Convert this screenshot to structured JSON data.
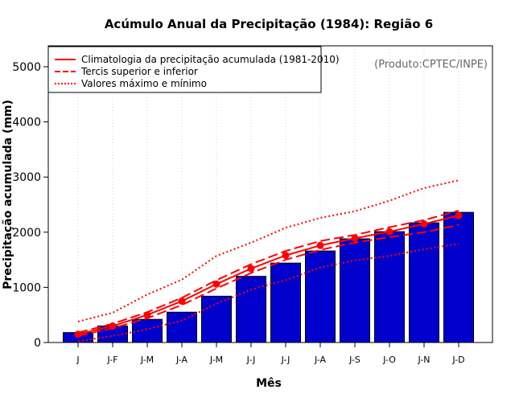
{
  "chart_data": {
    "type": "bar",
    "title": "Acúmulo Anual da Precipitação (1984): Região 6",
    "xlabel": "Mês",
    "ylabel": "Precipitação acumulada (mm)",
    "credit": "(Produto:CPTEC/INPE)",
    "ylim": [
      0,
      5300
    ],
    "yticks": [
      0,
      1000,
      2000,
      3000,
      4000,
      5000
    ],
    "grid": "vertical-dotted",
    "legend_position": "top-left",
    "categories": [
      "J",
      "J-F",
      "J-M",
      "J-A",
      "J-M",
      "J-J",
      "J-J",
      "J-A",
      "J-S",
      "J-O",
      "J-N",
      "J-D"
    ],
    "values": [
      180,
      300,
      420,
      550,
      840,
      1200,
      1440,
      1660,
      1880,
      2010,
      2170,
      2360
    ],
    "bar_color": "#0000CC",
    "line_color": "#FF0000",
    "series": [
      {
        "name": "Climatologia da precipitação acumulada (1981-2010)",
        "style": "solid",
        "markers": true,
        "values": [
          150,
          300,
          500,
          750,
          1060,
          1340,
          1580,
          1760,
          1890,
          2010,
          2150,
          2300
        ]
      },
      {
        "name": "Tercis superior e inferior",
        "style": "dashed",
        "values": [
          180,
          340,
          550,
          810,
          1130,
          1420,
          1660,
          1840,
          1950,
          2090,
          2220,
          2390
        ]
      },
      {
        "name": "Tercis superior e inferior (inferior)",
        "style": "dashed",
        "legend": false,
        "values": [
          120,
          260,
          440,
          680,
          980,
          1260,
          1500,
          1680,
          1810,
          1910,
          2000,
          2130
        ]
      },
      {
        "name": "Valores máximo e mínimo",
        "style": "dotted",
        "values": [
          380,
          540,
          870,
          1140,
          1570,
          1810,
          2080,
          2260,
          2380,
          2570,
          2800,
          2940
        ]
      },
      {
        "name": "Valores máximo e mínimo (mínimo)",
        "style": "dotted",
        "legend": false,
        "values": [
          20,
          120,
          240,
          400,
          700,
          960,
          1130,
          1360,
          1490,
          1570,
          1690,
          1790
        ]
      }
    ],
    "legend": [
      {
        "label": "Climatologia da precipitação acumulada (1981-2010)",
        "style": "solid"
      },
      {
        "label": "Tercis superior e inferior",
        "style": "dashed"
      },
      {
        "label": "Valores máximo e mínimo",
        "style": "dotted"
      }
    ]
  }
}
